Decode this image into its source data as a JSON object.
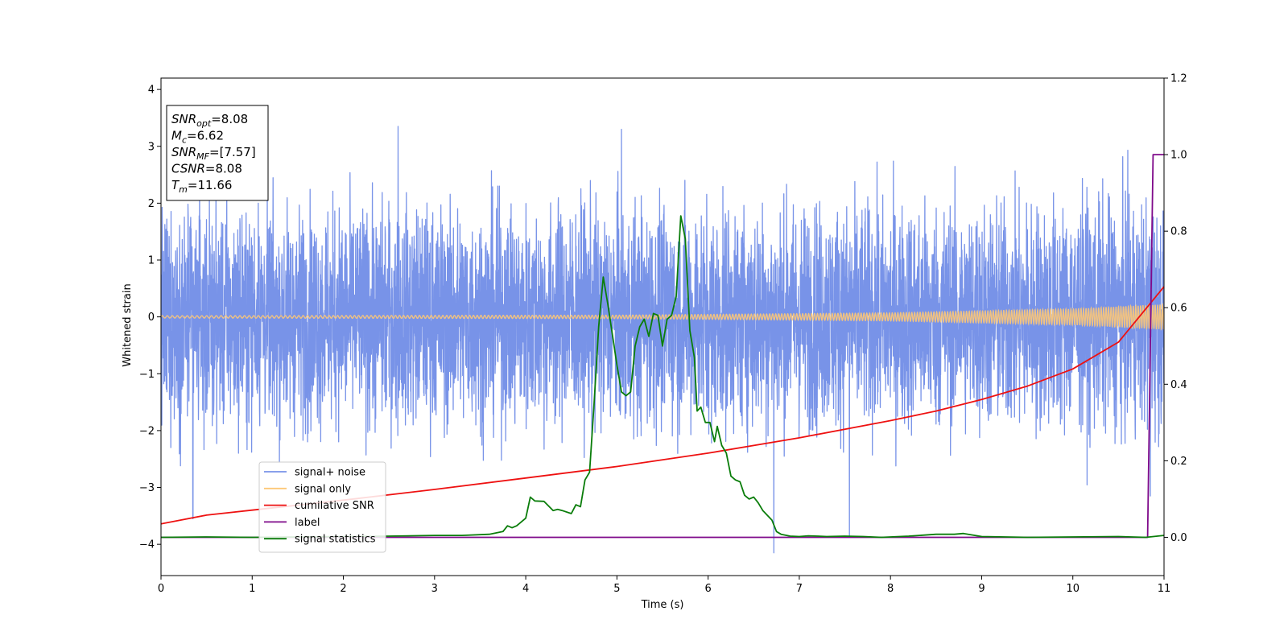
{
  "chart_data": {
    "type": "line",
    "xlabel": "Time (s)",
    "ylabel": "Whitened strain",
    "xlim": [
      0,
      11
    ],
    "ylim_left": [
      -4.55,
      4.2
    ],
    "ylim_right": [
      -0.1,
      1.2
    ],
    "x_ticks": [
      "0",
      "1",
      "2",
      "3",
      "4",
      "5",
      "6",
      "7",
      "8",
      "9",
      "10",
      "11"
    ],
    "y_ticks_left": [
      "−4",
      "−3",
      "−2",
      "−1",
      "0",
      "1",
      "2",
      "3",
      "4"
    ],
    "y_ticks_right": [
      "0.0",
      "0.2",
      "0.4",
      "0.6",
      "0.8",
      "1.0",
      "1.2"
    ],
    "grid": false,
    "legend_position": "lower-left",
    "annotation": {
      "lines": [
        {
          "base": "SNR",
          "sub": "opt",
          "rest": "=8.08"
        },
        {
          "base": "M",
          "sub": "c",
          "rest": "=6.62"
        },
        {
          "base": "SNR",
          "sub": "MF",
          "rest": "=[7.57]"
        },
        {
          "base": "CSNR",
          "sub": "",
          "rest": "=8.08"
        },
        {
          "base": "T",
          "sub": "m",
          "rest": "=11.66"
        }
      ]
    },
    "series": [
      {
        "name": "signal+ noise",
        "axis": "left",
        "color": "#7893e8",
        "style": "noise",
        "envelope": [
          [
            0,
            2.8
          ],
          [
            11,
            3.0
          ]
        ],
        "notable_extremes": [
          [
            2.6,
            3.35
          ],
          [
            5.05,
            3.3
          ],
          [
            0.35,
            -3.55
          ],
          [
            6.72,
            -4.15
          ],
          [
            7.55,
            -3.85
          ],
          [
            10.85,
            -3.15
          ]
        ]
      },
      {
        "name": "signal only",
        "axis": "left",
        "color": "#fdc877",
        "style": "chirp",
        "amplitude": [
          [
            0,
            0.02
          ],
          [
            5,
            0.03
          ],
          [
            8,
            0.07
          ],
          [
            10,
            0.14
          ],
          [
            11,
            0.22
          ]
        ]
      },
      {
        "name": "cumilative SNR",
        "axis": "right",
        "color": "#ee1111",
        "x": [
          0,
          0.5,
          1,
          2,
          3,
          4,
          5,
          6,
          7,
          8,
          8.5,
          9,
          9.5,
          10,
          10.5,
          11
        ],
        "y": [
          0.035,
          0.058,
          0.071,
          0.097,
          0.125,
          0.155,
          0.185,
          0.22,
          0.26,
          0.305,
          0.33,
          0.36,
          0.395,
          0.44,
          0.51,
          0.655
        ]
      },
      {
        "name": "label",
        "axis": "right",
        "color": "#7f0a8a",
        "x": [
          0,
          10.82,
          10.88,
          11
        ],
        "y": [
          0,
          0,
          1,
          1
        ]
      },
      {
        "name": "signal statistics",
        "axis": "right",
        "color": "#0a7d0a",
        "x": [
          0,
          0.5,
          1,
          1.5,
          2,
          2.5,
          3,
          3.3,
          3.6,
          3.75,
          3.8,
          3.85,
          3.9,
          4.0,
          4.05,
          4.1,
          4.2,
          4.3,
          4.35,
          4.4,
          4.5,
          4.55,
          4.6,
          4.65,
          4.7,
          4.75,
          4.8,
          4.85,
          4.9,
          4.95,
          5.0,
          5.05,
          5.1,
          5.15,
          5.2,
          5.25,
          5.3,
          5.35,
          5.4,
          5.45,
          5.5,
          5.55,
          5.6,
          5.65,
          5.7,
          5.75,
          5.8,
          5.85,
          5.88,
          5.92,
          5.97,
          6.02,
          6.07,
          6.1,
          6.15,
          6.2,
          6.25,
          6.3,
          6.35,
          6.4,
          6.45,
          6.5,
          6.55,
          6.6,
          6.7,
          6.75,
          6.8,
          6.9,
          7.0,
          7.1,
          7.2,
          7.3,
          7.5,
          7.7,
          7.9,
          8.0,
          8.2,
          8.5,
          8.7,
          8.8,
          8.9,
          9.0,
          9.5,
          10.0,
          10.5,
          10.8,
          11.0
        ],
        "y": [
          0.0,
          0.001,
          0.0,
          0.001,
          0.002,
          0.003,
          0.005,
          0.005,
          0.008,
          0.015,
          0.03,
          0.025,
          0.03,
          0.05,
          0.105,
          0.095,
          0.094,
          0.07,
          0.073,
          0.07,
          0.062,
          0.085,
          0.08,
          0.15,
          0.17,
          0.35,
          0.55,
          0.68,
          0.61,
          0.53,
          0.45,
          0.38,
          0.37,
          0.38,
          0.5,
          0.55,
          0.57,
          0.525,
          0.585,
          0.58,
          0.5,
          0.57,
          0.58,
          0.63,
          0.84,
          0.78,
          0.54,
          0.47,
          0.33,
          0.34,
          0.3,
          0.3,
          0.25,
          0.29,
          0.24,
          0.22,
          0.16,
          0.15,
          0.145,
          0.11,
          0.1,
          0.105,
          0.09,
          0.07,
          0.045,
          0.015,
          0.008,
          0.003,
          0.002,
          0.004,
          0.003,
          0.002,
          0.003,
          0.002,
          0.0,
          0.001,
          0.003,
          0.008,
          0.008,
          0.01,
          0.006,
          0.002,
          0.0,
          0.001,
          0.002,
          0.0,
          0.005
        ]
      }
    ]
  }
}
